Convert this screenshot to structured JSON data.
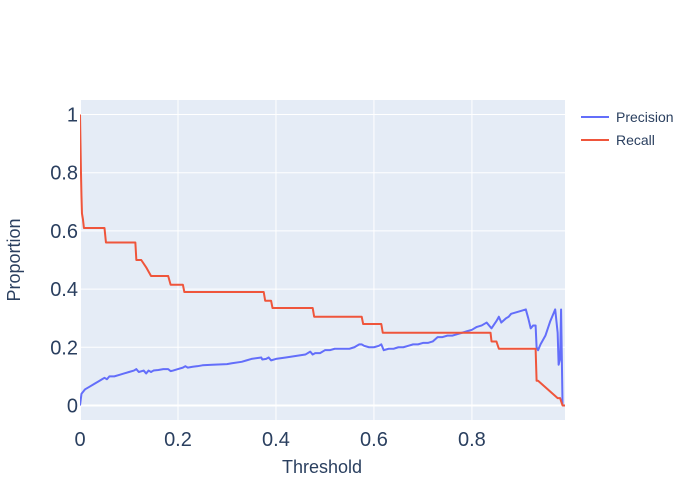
{
  "chart_data": {
    "type": "line",
    "title": "",
    "xlabel": "Threshold",
    "ylabel": "Proportion",
    "xlim": [
      0,
      0.99
    ],
    "ylim": [
      -0.05,
      1.05
    ],
    "xticks": [
      0,
      0.2,
      0.4,
      0.6,
      0.8
    ],
    "xtick_labels": [
      "0",
      "0.2",
      "0.4",
      "0.6",
      "0.8"
    ],
    "yticks": [
      0,
      0.2,
      0.4,
      0.6,
      0.8,
      1
    ],
    "ytick_labels": [
      "0",
      "0.2",
      "0.4",
      "0.6",
      "0.8",
      "1"
    ],
    "grid": true,
    "legend_position": "top-right",
    "series": [
      {
        "name": "Precision",
        "color": "#636efa",
        "x": [
          0,
          0.003,
          0.01,
          0.02,
          0.03,
          0.04,
          0.045,
          0.05,
          0.055,
          0.06,
          0.07,
          0.08,
          0.09,
          0.1,
          0.11,
          0.115,
          0.12,
          0.13,
          0.135,
          0.14,
          0.145,
          0.15,
          0.16,
          0.17,
          0.18,
          0.185,
          0.19,
          0.2,
          0.21,
          0.215,
          0.22,
          0.23,
          0.24,
          0.25,
          0.27,
          0.3,
          0.31,
          0.33,
          0.34,
          0.35,
          0.37,
          0.372,
          0.38,
          0.385,
          0.39,
          0.4,
          0.42,
          0.44,
          0.46,
          0.47,
          0.475,
          0.48,
          0.49,
          0.5,
          0.51,
          0.52,
          0.55,
          0.56,
          0.57,
          0.575,
          0.58,
          0.59,
          0.6,
          0.61,
          0.615,
          0.62,
          0.63,
          0.64,
          0.65,
          0.66,
          0.67,
          0.68,
          0.69,
          0.7,
          0.71,
          0.72,
          0.73,
          0.74,
          0.75,
          0.76,
          0.77,
          0.78,
          0.79,
          0.8,
          0.81,
          0.82,
          0.83,
          0.84,
          0.85,
          0.855,
          0.86,
          0.87,
          0.875,
          0.88,
          0.9,
          0.91,
          0.915,
          0.92,
          0.925,
          0.93,
          0.932,
          0.935,
          0.94,
          0.95,
          0.96,
          0.97,
          0.975,
          0.977,
          0.98,
          0.982,
          0.985
        ],
        "y": [
          0,
          0.04,
          0.055,
          0.065,
          0.075,
          0.085,
          0.09,
          0.095,
          0.09,
          0.1,
          0.1,
          0.105,
          0.11,
          0.115,
          0.12,
          0.125,
          0.115,
          0.12,
          0.11,
          0.12,
          0.115,
          0.12,
          0.122,
          0.125,
          0.125,
          0.118,
          0.12,
          0.125,
          0.13,
          0.135,
          0.13,
          0.133,
          0.135,
          0.138,
          0.14,
          0.142,
          0.145,
          0.15,
          0.155,
          0.16,
          0.165,
          0.158,
          0.16,
          0.165,
          0.155,
          0.16,
          0.165,
          0.17,
          0.175,
          0.185,
          0.175,
          0.18,
          0.18,
          0.19,
          0.19,
          0.195,
          0.195,
          0.2,
          0.21,
          0.21,
          0.205,
          0.2,
          0.2,
          0.205,
          0.21,
          0.19,
          0.195,
          0.195,
          0.2,
          0.2,
          0.205,
          0.21,
          0.21,
          0.215,
          0.215,
          0.22,
          0.235,
          0.235,
          0.24,
          0.24,
          0.245,
          0.25,
          0.255,
          0.26,
          0.27,
          0.275,
          0.285,
          0.265,
          0.29,
          0.305,
          0.285,
          0.3,
          0.305,
          0.315,
          0.325,
          0.33,
          0.3,
          0.265,
          0.275,
          0.275,
          0.2,
          0.19,
          0.21,
          0.24,
          0.29,
          0.33,
          0.25,
          0.14,
          0.16,
          0.33,
          0
        ]
      },
      {
        "name": "Recall",
        "color": "#ef553b",
        "x": [
          0,
          0.001,
          0.002,
          0.003,
          0.004,
          0.006,
          0.008,
          0.01,
          0.05,
          0.053,
          0.113,
          0.115,
          0.125,
          0.135,
          0.145,
          0.18,
          0.185,
          0.21,
          0.213,
          0.375,
          0.378,
          0.39,
          0.393,
          0.475,
          0.478,
          0.575,
          0.578,
          0.615,
          0.618,
          0.835,
          0.838,
          0.84,
          0.85,
          0.855,
          0.865,
          0.93,
          0.932,
          0.935,
          0.975,
          0.98,
          0.985,
          0.99
        ],
        "y": [
          1,
          0.9,
          0.8,
          0.72,
          0.66,
          0.64,
          0.61,
          0.61,
          0.61,
          0.56,
          0.56,
          0.5,
          0.5,
          0.475,
          0.445,
          0.445,
          0.415,
          0.415,
          0.39,
          0.39,
          0.36,
          0.36,
          0.335,
          0.335,
          0.305,
          0.305,
          0.28,
          0.28,
          0.25,
          0.25,
          0.25,
          0.22,
          0.22,
          0.195,
          0.195,
          0.195,
          0.085,
          0.085,
          0.025,
          0.025,
          0,
          0
        ]
      }
    ]
  }
}
